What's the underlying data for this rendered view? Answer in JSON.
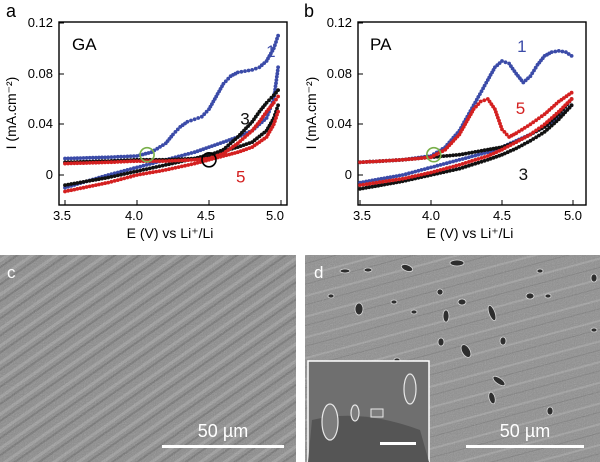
{
  "panels": {
    "a": "a",
    "b": "b",
    "c": "c",
    "d": "d"
  },
  "colors": {
    "series_1": "#3b4ba8",
    "series_3": "#111111",
    "series_5": "#d42020",
    "marker_green": "#79b04a",
    "marker_black": "#000000"
  },
  "sem": {
    "c_scale": "50 µm",
    "d_scale": "50 µm"
  },
  "chart_data": [
    {
      "type": "line",
      "panel": "a",
      "sample_label": "GA",
      "xlabel": "E (V) vs Li⁺/Li",
      "ylabel": "I (mA.cm⁻²)",
      "xlim": [
        3.5,
        5.0
      ],
      "ylim": [
        -0.02,
        0.12
      ],
      "xticks": [
        "3.5",
        "4.0",
        "4.5",
        "5.0"
      ],
      "yticks": [
        "0",
        "0.04",
        "0.08",
        "0.12"
      ],
      "series": [
        {
          "name": "1",
          "color": "#3b4ba8",
          "x": [
            3.5,
            3.8,
            4.0,
            4.1,
            4.2,
            4.25,
            4.3,
            4.35,
            4.4,
            4.45,
            4.5,
            4.55,
            4.6,
            4.65,
            4.7,
            4.75,
            4.8,
            4.85,
            4.9,
            4.95,
            4.98
          ],
          "y": [
            0.013,
            0.014,
            0.015,
            0.018,
            0.025,
            0.032,
            0.038,
            0.042,
            0.044,
            0.046,
            0.052,
            0.062,
            0.072,
            0.078,
            0.081,
            0.082,
            0.083,
            0.085,
            0.09,
            0.1,
            0.11
          ]
        },
        {
          "name": "1 (reverse)",
          "color": "#3b4ba8",
          "x": [
            4.98,
            4.95,
            4.9,
            4.8,
            4.7,
            4.6,
            4.5,
            4.4,
            4.2,
            4.0,
            3.8,
            3.5
          ],
          "y": [
            0.085,
            0.06,
            0.045,
            0.035,
            0.03,
            0.026,
            0.022,
            0.018,
            0.012,
            0.006,
            0.0,
            -0.01
          ]
        },
        {
          "name": "3",
          "color": "#111111",
          "x": [
            3.5,
            3.8,
            4.0,
            4.2,
            4.4,
            4.5,
            4.6,
            4.7,
            4.8,
            4.85,
            4.9,
            4.95,
            4.98
          ],
          "y": [
            0.01,
            0.011,
            0.012,
            0.012,
            0.013,
            0.015,
            0.02,
            0.03,
            0.042,
            0.05,
            0.057,
            0.063,
            0.067
          ]
        },
        {
          "name": "3 (reverse)",
          "color": "#111111",
          "x": [
            4.98,
            4.95,
            4.9,
            4.8,
            4.7,
            4.6,
            4.5,
            4.4,
            4.2,
            4.0,
            3.8,
            3.5
          ],
          "y": [
            0.055,
            0.045,
            0.035,
            0.026,
            0.022,
            0.019,
            0.016,
            0.013,
            0.008,
            0.003,
            -0.002,
            -0.008
          ]
        },
        {
          "name": "5",
          "color": "#d42020",
          "x": [
            3.5,
            3.8,
            4.0,
            4.2,
            4.4,
            4.5,
            4.6,
            4.7,
            4.8,
            4.85,
            4.9,
            4.95,
            4.98
          ],
          "y": [
            0.009,
            0.01,
            0.011,
            0.011,
            0.012,
            0.013,
            0.017,
            0.025,
            0.035,
            0.042,
            0.05,
            0.057,
            0.062
          ]
        },
        {
          "name": "5 (reverse)",
          "color": "#d42020",
          "x": [
            4.98,
            4.95,
            4.9,
            4.8,
            4.7,
            4.6,
            4.5,
            4.4,
            4.2,
            4.0,
            3.8,
            3.5
          ],
          "y": [
            0.05,
            0.04,
            0.03,
            0.022,
            0.018,
            0.015,
            0.012,
            0.009,
            0.004,
            0.0,
            -0.006,
            -0.013
          ]
        }
      ],
      "labels": [
        {
          "text": "1",
          "x": 4.93,
          "y": 0.093,
          "color": "#3b4ba8"
        },
        {
          "text": "3",
          "x": 4.75,
          "y": 0.04,
          "color": "#111111"
        },
        {
          "text": "5",
          "x": 4.72,
          "y": -0.006,
          "color": "#d42020"
        }
      ],
      "markers": [
        {
          "x": 4.07,
          "y": 0.016,
          "color": "#79b04a"
        },
        {
          "x": 4.5,
          "y": 0.012,
          "color": "#000000"
        }
      ]
    },
    {
      "type": "line",
      "panel": "b",
      "sample_label": "PA",
      "xlabel": "E (V) vs Li⁺/Li",
      "ylabel": "I (mA.cm⁻²)",
      "xlim": [
        3.5,
        5.0
      ],
      "ylim": [
        -0.02,
        0.12
      ],
      "xticks": [
        "3.5",
        "4.0",
        "4.5",
        "5.0"
      ],
      "yticks": [
        "0",
        "0.04",
        "0.08",
        "0.12"
      ],
      "series": [
        {
          "name": "1",
          "color": "#3b4ba8",
          "x": [
            3.5,
            3.8,
            4.0,
            4.1,
            4.2,
            4.3,
            4.4,
            4.45,
            4.5,
            4.55,
            4.6,
            4.65,
            4.7,
            4.75,
            4.8,
            4.85,
            4.9,
            4.95,
            4.99
          ],
          "y": [
            0.01,
            0.012,
            0.015,
            0.022,
            0.035,
            0.055,
            0.075,
            0.085,
            0.09,
            0.088,
            0.08,
            0.073,
            0.078,
            0.087,
            0.094,
            0.097,
            0.098,
            0.097,
            0.094
          ]
        },
        {
          "name": "1 (reverse)",
          "color": "#3b4ba8",
          "x": [
            4.99,
            4.9,
            4.8,
            4.7,
            4.6,
            4.5,
            4.4,
            4.2,
            4.0,
            3.8,
            3.5
          ],
          "y": [
            0.055,
            0.045,
            0.038,
            0.032,
            0.027,
            0.022,
            0.018,
            0.012,
            0.006,
            0.0,
            -0.006
          ]
        },
        {
          "name": "3",
          "color": "#111111",
          "x": [
            3.5,
            3.8,
            4.0,
            4.2,
            4.4,
            4.5,
            4.6,
            4.7,
            4.8,
            4.9,
            4.99
          ],
          "y": [
            0.01,
            0.012,
            0.014,
            0.016,
            0.02,
            0.022,
            0.026,
            0.032,
            0.038,
            0.048,
            0.06
          ]
        },
        {
          "name": "3 (reverse)",
          "color": "#111111",
          "x": [
            4.99,
            4.9,
            4.8,
            4.7,
            4.6,
            4.5,
            4.4,
            4.2,
            4.0,
            3.8,
            3.5
          ],
          "y": [
            0.055,
            0.044,
            0.034,
            0.027,
            0.021,
            0.016,
            0.012,
            0.005,
            0.0,
            -0.005,
            -0.011
          ]
        },
        {
          "name": "5",
          "color": "#d42020",
          "x": [
            3.5,
            3.8,
            4.0,
            4.1,
            4.2,
            4.25,
            4.3,
            4.35,
            4.4,
            4.45,
            4.5,
            4.55,
            4.6,
            4.7,
            4.8,
            4.9,
            4.99
          ],
          "y": [
            0.01,
            0.012,
            0.014,
            0.02,
            0.032,
            0.042,
            0.052,
            0.058,
            0.06,
            0.052,
            0.036,
            0.03,
            0.033,
            0.04,
            0.048,
            0.058,
            0.065
          ]
        },
        {
          "name": "5 (reverse)",
          "color": "#d42020",
          "x": [
            4.99,
            4.9,
            4.8,
            4.7,
            4.6,
            4.5,
            4.4,
            4.2,
            4.0,
            3.8,
            3.5
          ],
          "y": [
            0.06,
            0.05,
            0.04,
            0.032,
            0.026,
            0.02,
            0.015,
            0.008,
            0.002,
            -0.003,
            -0.008
          ]
        }
      ],
      "labels": [
        {
          "text": "1",
          "x": 4.64,
          "y": 0.097,
          "color": "#3b4ba8"
        },
        {
          "text": "5",
          "x": 4.63,
          "y": 0.048,
          "color": "#d42020"
        },
        {
          "text": "3",
          "x": 4.65,
          "y": -0.004,
          "color": "#111111"
        }
      ],
      "markers": [
        {
          "x": 4.02,
          "y": 0.016,
          "color": "#79b04a"
        }
      ]
    }
  ]
}
